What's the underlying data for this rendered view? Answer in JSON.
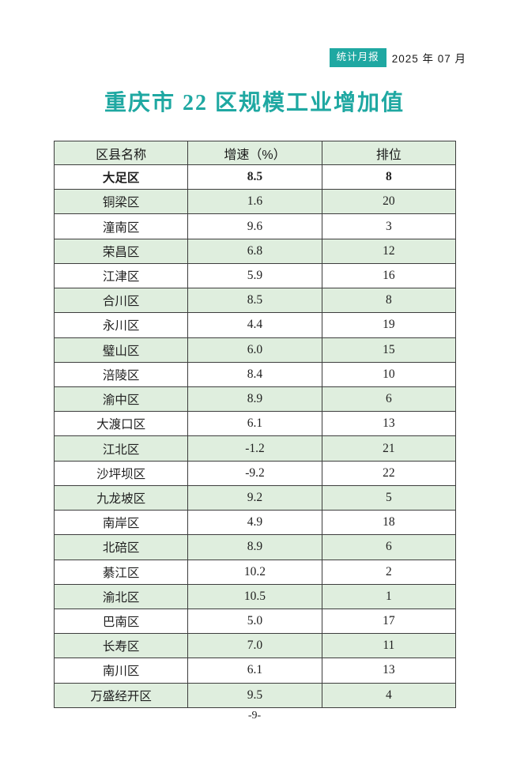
{
  "page": {
    "badge_label": "统计月报",
    "date_label": "2025 年 07 月",
    "title": "重庆市 22 区规模工业增加值",
    "footer_page_number": "-9-"
  },
  "colors": {
    "accent_teal": "#1FA8A2",
    "row_green": "#DFEEDE",
    "border": "#3D3D3D"
  },
  "table": {
    "headers": [
      "区县名称",
      "增速（%）",
      "排位"
    ],
    "highlighted_district": "大足区",
    "rows": [
      {
        "name": "大足区",
        "growth": "8.5",
        "rank": "8"
      },
      {
        "name": "铜梁区",
        "growth": "1.6",
        "rank": "20"
      },
      {
        "name": "潼南区",
        "growth": "9.6",
        "rank": "3"
      },
      {
        "name": "荣昌区",
        "growth": "6.8",
        "rank": "12"
      },
      {
        "name": "江津区",
        "growth": "5.9",
        "rank": "16"
      },
      {
        "name": "合川区",
        "growth": "8.5",
        "rank": "8"
      },
      {
        "name": "永川区",
        "growth": "4.4",
        "rank": "19"
      },
      {
        "name": "璧山区",
        "growth": "6.0",
        "rank": "15"
      },
      {
        "name": "涪陵区",
        "growth": "8.4",
        "rank": "10"
      },
      {
        "name": "渝中区",
        "growth": "8.9",
        "rank": "6"
      },
      {
        "name": "大渡口区",
        "growth": "6.1",
        "rank": "13"
      },
      {
        "name": "江北区",
        "growth": "-1.2",
        "rank": "21"
      },
      {
        "name": "沙坪坝区",
        "growth": "-9.2",
        "rank": "22"
      },
      {
        "name": "九龙坡区",
        "growth": "9.2",
        "rank": "5"
      },
      {
        "name": "南岸区",
        "growth": "4.9",
        "rank": "18"
      },
      {
        "name": "北碚区",
        "growth": "8.9",
        "rank": "6"
      },
      {
        "name": "綦江区",
        "growth": "10.2",
        "rank": "2"
      },
      {
        "name": "渝北区",
        "growth": "10.5",
        "rank": "1"
      },
      {
        "name": "巴南区",
        "growth": "5.0",
        "rank": "17"
      },
      {
        "name": "长寿区",
        "growth": "7.0",
        "rank": "11"
      },
      {
        "name": "南川区",
        "growth": "6.1",
        "rank": "13"
      },
      {
        "name": "万盛经开区",
        "growth": "9.5",
        "rank": "4"
      }
    ]
  }
}
